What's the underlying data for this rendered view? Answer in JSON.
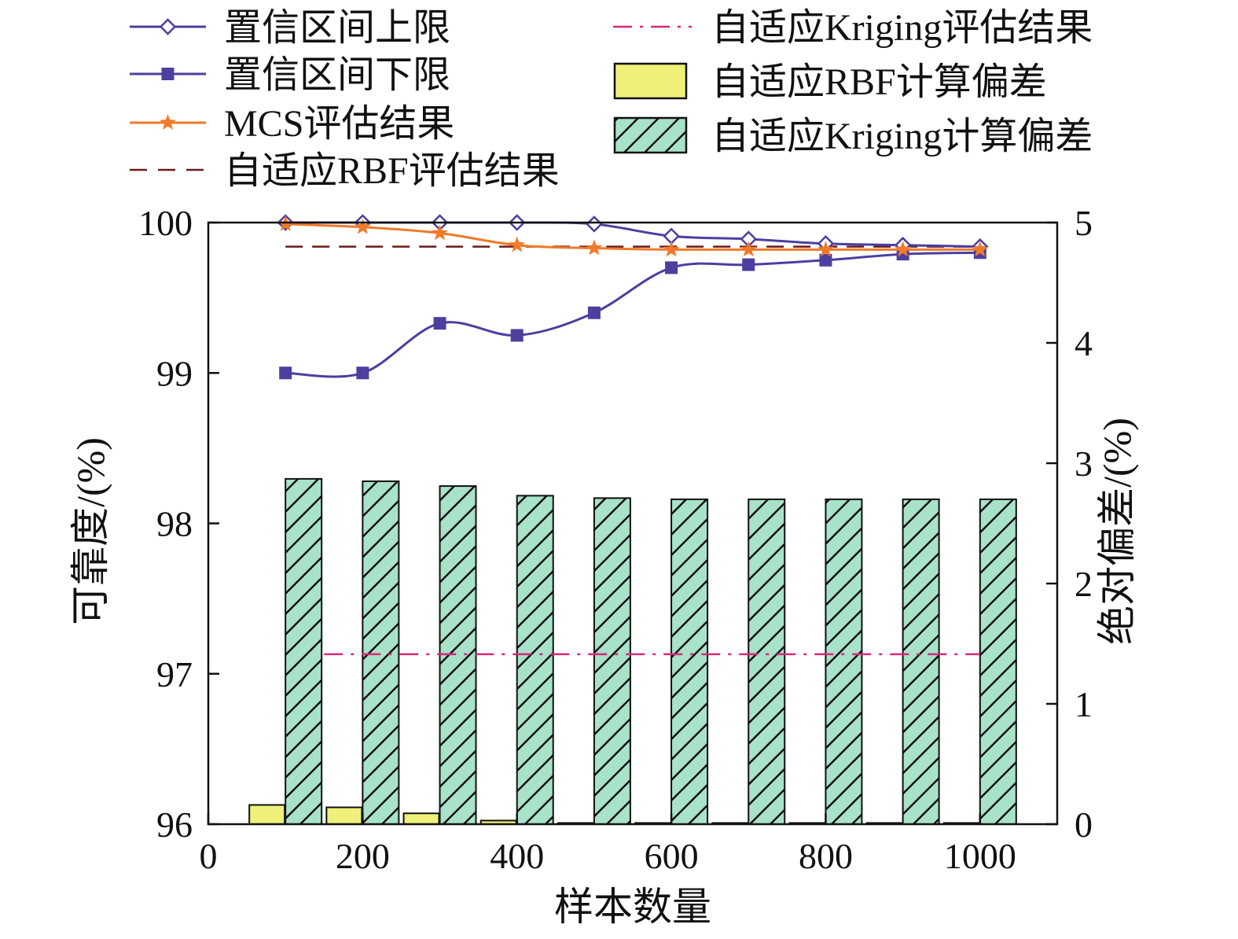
{
  "chart_data": {
    "type": "line",
    "xlabel": "样本数量",
    "ylabel": "可靠度/(%)",
    "y2label": "绝对偏差/(%)",
    "xlim": [
      0,
      1100
    ],
    "ylim": [
      96,
      100
    ],
    "y2lim": [
      0,
      5
    ],
    "xticks": [
      0,
      200,
      400,
      600,
      800,
      1000
    ],
    "yticks": [
      96,
      97,
      98,
      99,
      100
    ],
    "y2ticks": [
      0,
      1,
      2,
      3,
      4,
      5
    ],
    "x": [
      100,
      200,
      300,
      400,
      500,
      600,
      700,
      800,
      900,
      1000
    ],
    "series": [
      {
        "name": "置信区间上限",
        "axis": "left",
        "kind": "line-marker",
        "marker": "diamond",
        "color": "#4b3fa0",
        "values": [
          100.0,
          100.0,
          100.0,
          100.0,
          99.99,
          99.91,
          99.89,
          99.86,
          99.85,
          99.84
        ]
      },
      {
        "name": "置信区间下限",
        "axis": "left",
        "kind": "line-marker",
        "marker": "square",
        "color": "#4b3fa0",
        "values": [
          99.0,
          99.0,
          99.33,
          99.25,
          99.4,
          99.7,
          99.72,
          99.75,
          99.79,
          99.8
        ]
      },
      {
        "name": "MCS评估结果",
        "axis": "left",
        "kind": "line-marker",
        "marker": "star",
        "color": "#f07a2a",
        "values": [
          99.99,
          99.97,
          99.93,
          99.85,
          99.83,
          99.82,
          99.82,
          99.82,
          99.82,
          99.82
        ]
      },
      {
        "name": "自适应RBF评估结果",
        "axis": "left",
        "kind": "dashed",
        "color": "#6b1a1a",
        "x_range": [
          100,
          1000
        ],
        "value": 99.84
      },
      {
        "name": "自适应Kriging评估结果",
        "axis": "left",
        "kind": "dashdot",
        "color": "#d6297a",
        "x_range": [
          150,
          1000
        ],
        "value": 97.13
      },
      {
        "name": "自适应RBF计算偏差",
        "axis": "right",
        "kind": "bar",
        "color": "#eef07a",
        "values": [
          0.16,
          0.14,
          0.09,
          0.03,
          0.01,
          0.01,
          0.01,
          0.01,
          0.01,
          0.01
        ]
      },
      {
        "name": "自适应Kriging计算偏差",
        "axis": "right",
        "kind": "bar-hatched",
        "color": "#a8e2c9",
        "values": [
          2.87,
          2.85,
          2.81,
          2.73,
          2.71,
          2.7,
          2.7,
          2.7,
          2.7,
          2.7
        ]
      }
    ],
    "legend": {
      "left": [
        "置信区间上限",
        "置信区间下限",
        "MCS评估结果",
        "自适应RBF评估结果"
      ],
      "right": [
        "自适应Kriging评估结果",
        "自适应RBF计算偏差",
        "自适应Kriging计算偏差"
      ]
    }
  }
}
